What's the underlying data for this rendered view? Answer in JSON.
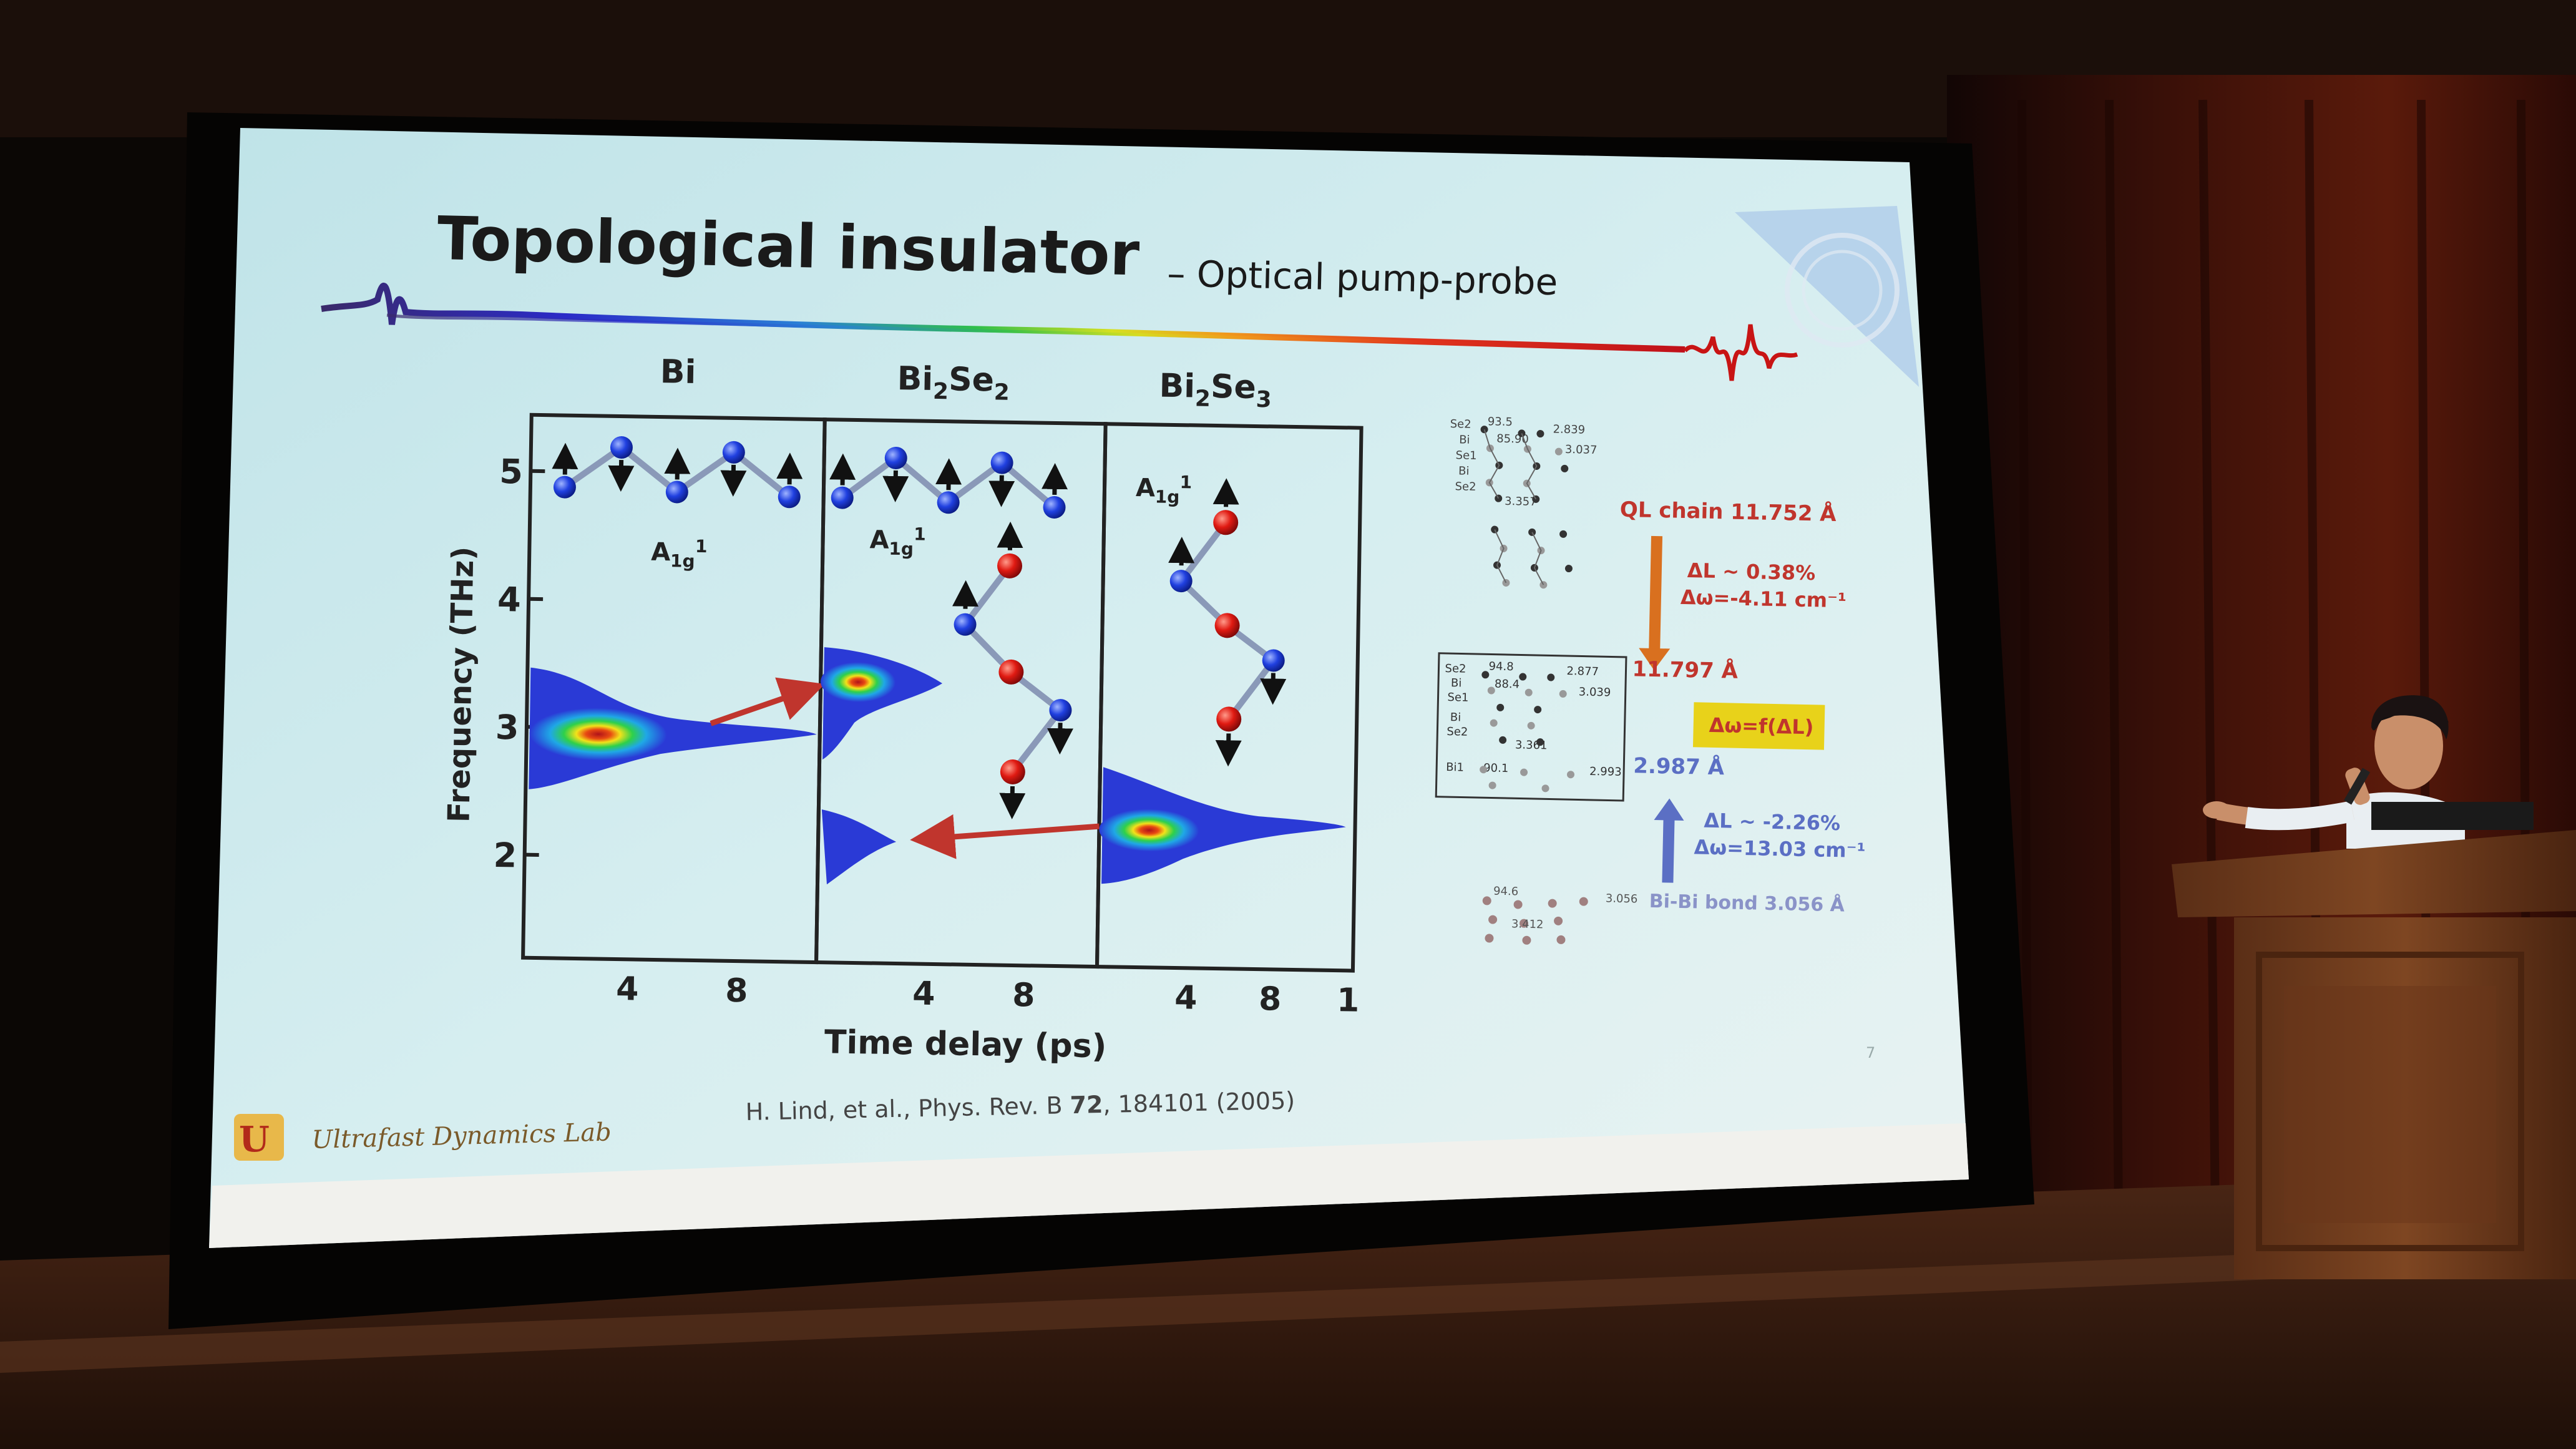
{
  "slide": {
    "title": "Topological insulator",
    "subtitle": "– Optical pump-probe",
    "citation": {
      "authors_prefix": "H. Lind, et al., Phys. Rev. B ",
      "volume": "72",
      "pages_year": ", 184101 (2005)"
    },
    "lab_name": "Ultrafast Dynamics Lab",
    "page_number": "7"
  },
  "figure": {
    "panels": [
      {
        "title_main": "Bi",
        "title_sub": "",
        "title_tail": "",
        "mode_label": "A",
        "mode_sub": "1g",
        "mode_sup": "1"
      },
      {
        "title_main": "Bi",
        "title_sub": "2",
        "title_tail": "Se",
        "title_tail_sub": "2",
        "mode_label": "A",
        "mode_sub": "1g",
        "mode_sup": "1"
      },
      {
        "title_main": "Bi",
        "title_sub": "2",
        "title_tail": "Se",
        "title_tail_sub": "3",
        "mode_label": "A",
        "mode_sub": "1g",
        "mode_sup": "1"
      }
    ],
    "y_axis_label": "Frequency (THz)",
    "y_ticks": [
      "5",
      "4",
      "3",
      "2"
    ],
    "x_axis_label": "Time delay (ps)",
    "x_ticks": [
      "4",
      "8",
      "4",
      "8",
      "4",
      "8",
      "1"
    ]
  },
  "right_diagram": {
    "top_structure_labels": [
      "Se2",
      "Bi",
      "Se1",
      "Bi",
      "Se2"
    ],
    "top_values": [
      "93.5",
      "85.90",
      "2.839",
      "3.037",
      "3.357"
    ],
    "ql_chain": "QL chain 11.752 Å",
    "delta_L_1": "ΔL ~ 0.38%",
    "delta_w_1": "Δω=-4.11 cm⁻¹",
    "mid_length": "11.797 Å",
    "middle_structure_labels": [
      "Se2",
      "Bi",
      "Se1",
      "Bi",
      "Se2",
      "Bi1"
    ],
    "middle_values": [
      "94.8",
      "88.4",
      "2.877",
      "3.039",
      "3.361",
      "90.1",
      "2.993"
    ],
    "formula": "Δω=f(ΔL)",
    "bond_length": "2.987 Å",
    "delta_L_2": "ΔL ~ -2.26%",
    "delta_w_2": "Δω=13.03 cm⁻¹",
    "bottom_values": [
      "94.6",
      "3.412",
      "3.056"
    ],
    "bibi_bond": "Bi-Bi bond 3.056 Å"
  },
  "colors": {
    "screen": "#c9e6ea",
    "title": "#1a1a1a",
    "arrow_red": "#c0352d",
    "arrow_orange": "#d9701f",
    "arrow_blue": "#5b6fc4",
    "highlight": "#e8d21a",
    "curtain": "#3a0f08",
    "stage": "#6b3a22"
  }
}
